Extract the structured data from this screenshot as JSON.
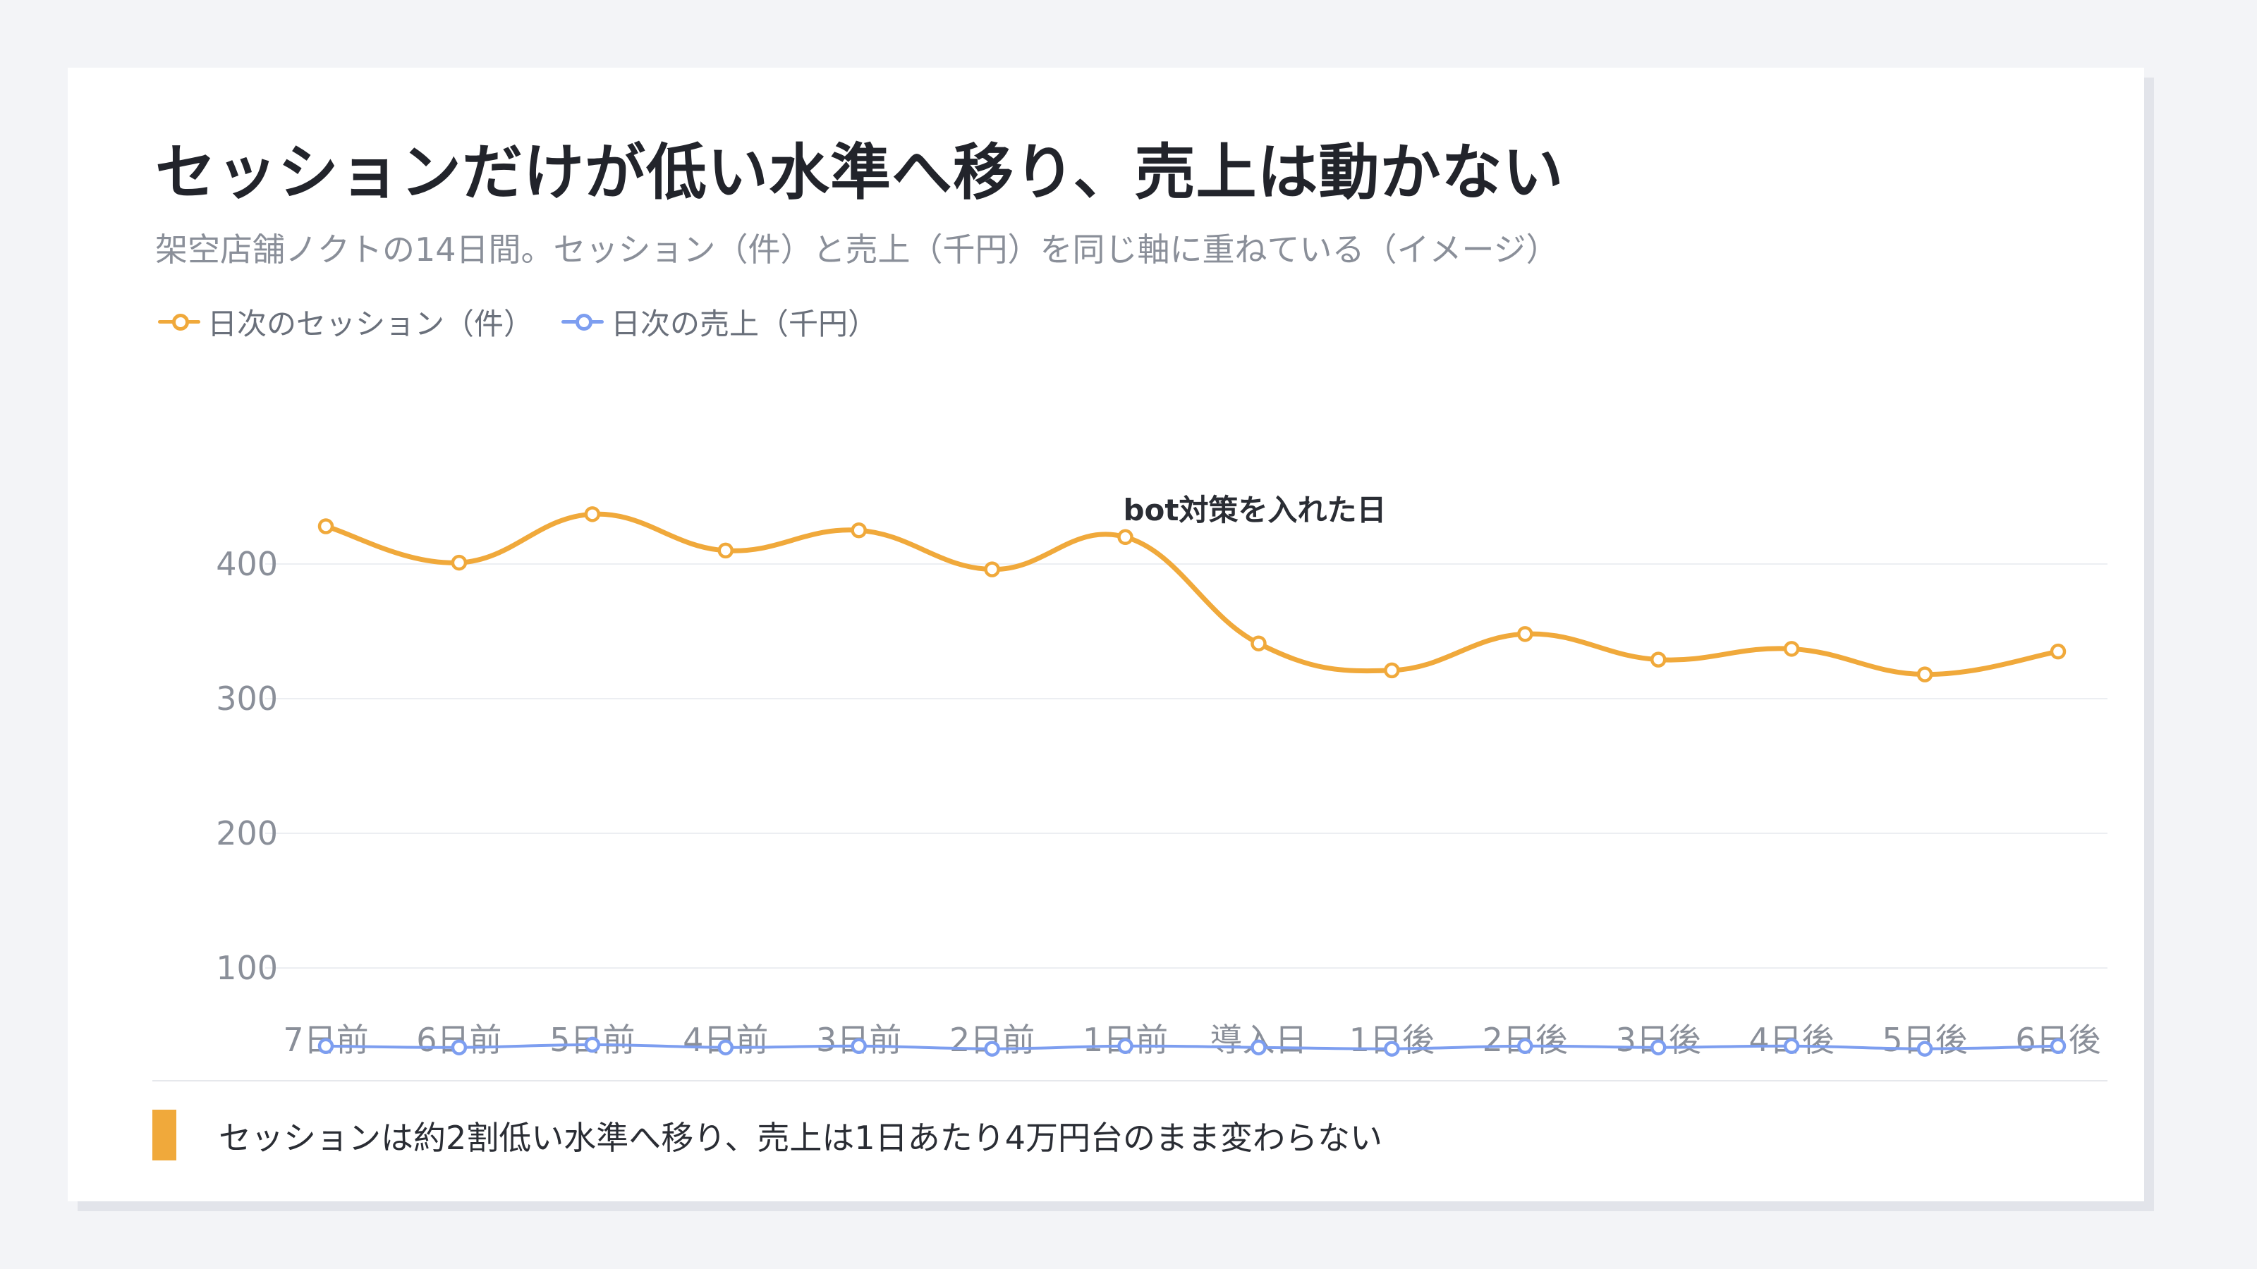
{
  "title": "セッションだけが低い水準へ移り、売上は動かない",
  "subtitle": "架空店舗ノクトの14日間。セッション（件）と売上（千円）を同じ軸に重ねている（イメージ）",
  "footer": {
    "note": "セッションは約2割低い水準へ移り、売上は1日あたり4万円台のまま変わらない"
  },
  "colors": {
    "sessions": "#f0a93b",
    "sales": "#7d9ef0",
    "grid": "#eceef2",
    "tick": "#8a8f99",
    "annotation": "#2a2d34",
    "accent_bar": "#f0a93b"
  },
  "chart_data": {
    "type": "line",
    "categories": [
      "7日前",
      "6日前",
      "5日前",
      "4日前",
      "3日前",
      "2日前",
      "1日前",
      "導入日",
      "1日後",
      "2日後",
      "3日後",
      "4日後",
      "5日後",
      "6日後"
    ],
    "series": [
      {
        "name": "日次のセッション（件）",
        "values": [
          428,
          401,
          437,
          410,
          425,
          396,
          420,
          341,
          321,
          348,
          329,
          337,
          318,
          335
        ]
      },
      {
        "name": "日次の売上（千円）",
        "values": [
          42,
          41,
          43,
          41,
          42,
          40,
          42,
          41,
          40,
          42,
          41,
          42,
          40,
          42
        ]
      }
    ],
    "yticks": [
      100,
      200,
      300,
      400
    ],
    "ylim": [
      0,
      470
    ],
    "grid": true,
    "legend_position": "top-left",
    "annotation": {
      "text": "bot対策を入れた日",
      "category": "導入日"
    }
  }
}
